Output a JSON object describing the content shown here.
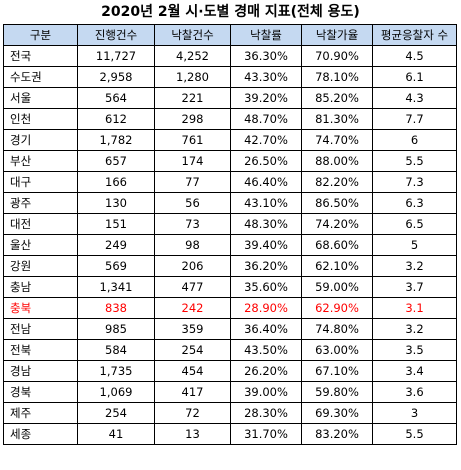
{
  "title": "2020년 2월 시·도별 경매 지표(전체 용도)",
  "accent_color": "#c5d9f1",
  "highlight_color": "#ff0000",
  "headers": [
    "구분",
    "진행건수",
    "낙찰건수",
    "낙찰률",
    "낙찰가율",
    "평균응찰자 수"
  ],
  "rows": [
    {
      "region": "전국",
      "auctions": "11,727",
      "winning_bids": "4,252",
      "win_rate": "36.30%",
      "bid_ratio": "70.90%",
      "avg_bidders": "4.5"
    },
    {
      "region": "수도권",
      "auctions": "2,958",
      "winning_bids": "1,280",
      "win_rate": "43.30%",
      "bid_ratio": "78.10%",
      "avg_bidders": "6.1"
    },
    {
      "region": "서울",
      "auctions": "564",
      "winning_bids": "221",
      "win_rate": "39.20%",
      "bid_ratio": "85.20%",
      "avg_bidders": "4.3"
    },
    {
      "region": "인천",
      "auctions": "612",
      "winning_bids": "298",
      "win_rate": "48.70%",
      "bid_ratio": "81.30%",
      "avg_bidders": "7.7"
    },
    {
      "region": "경기",
      "auctions": "1,782",
      "winning_bids": "761",
      "win_rate": "42.70%",
      "bid_ratio": "74.70%",
      "avg_bidders": "6"
    },
    {
      "region": "부산",
      "auctions": "657",
      "winning_bids": "174",
      "win_rate": "26.50%",
      "bid_ratio": "88.00%",
      "avg_bidders": "5.5"
    },
    {
      "region": "대구",
      "auctions": "166",
      "winning_bids": "77",
      "win_rate": "46.40%",
      "bid_ratio": "82.20%",
      "avg_bidders": "7.3"
    },
    {
      "region": "광주",
      "auctions": "130",
      "winning_bids": "56",
      "win_rate": "43.10%",
      "bid_ratio": "86.50%",
      "avg_bidders": "6.3"
    },
    {
      "region": "대전",
      "auctions": "151",
      "winning_bids": "73",
      "win_rate": "48.30%",
      "bid_ratio": "74.20%",
      "avg_bidders": "6.5"
    },
    {
      "region": "울산",
      "auctions": "249",
      "winning_bids": "98",
      "win_rate": "39.40%",
      "bid_ratio": "68.60%",
      "avg_bidders": "5"
    },
    {
      "region": "강원",
      "auctions": "569",
      "winning_bids": "206",
      "win_rate": "36.20%",
      "bid_ratio": "62.10%",
      "avg_bidders": "3.2"
    },
    {
      "region": "충남",
      "auctions": "1,341",
      "winning_bids": "477",
      "win_rate": "35.60%",
      "bid_ratio": "59.00%",
      "avg_bidders": "3.7"
    },
    {
      "region": "충북",
      "auctions": "838",
      "winning_bids": "242",
      "win_rate": "28.90%",
      "bid_ratio": "62.90%",
      "avg_bidders": "3.1",
      "highlight": true
    },
    {
      "region": "전남",
      "auctions": "985",
      "winning_bids": "359",
      "win_rate": "36.40%",
      "bid_ratio": "74.80%",
      "avg_bidders": "3.2"
    },
    {
      "region": "전북",
      "auctions": "584",
      "winning_bids": "254",
      "win_rate": "43.50%",
      "bid_ratio": "63.00%",
      "avg_bidders": "3.5"
    },
    {
      "region": "경남",
      "auctions": "1,735",
      "winning_bids": "454",
      "win_rate": "26.20%",
      "bid_ratio": "67.10%",
      "avg_bidders": "3.4"
    },
    {
      "region": "경북",
      "auctions": "1,069",
      "winning_bids": "417",
      "win_rate": "39.00%",
      "bid_ratio": "59.80%",
      "avg_bidders": "3.6"
    },
    {
      "region": "제주",
      "auctions": "254",
      "winning_bids": "72",
      "win_rate": "28.30%",
      "bid_ratio": "69.30%",
      "avg_bidders": "3"
    },
    {
      "region": "세종",
      "auctions": "41",
      "winning_bids": "13",
      "win_rate": "31.70%",
      "bid_ratio": "83.20%",
      "avg_bidders": "5.5"
    }
  ]
}
